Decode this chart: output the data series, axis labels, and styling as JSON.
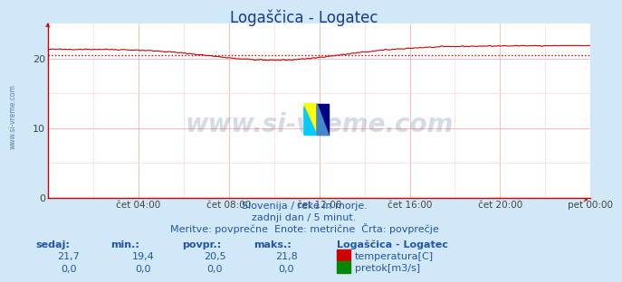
{
  "title": "Logaščica - Logatec",
  "bg_color": "#d0e8f8",
  "plot_bg_color": "#ffffff",
  "grid_color_major": "#ffbbbb",
  "grid_color_minor": "#ffd8d8",
  "xlim": [
    0,
    288
  ],
  "ylim": [
    0,
    25
  ],
  "yticks": [
    0,
    10,
    20
  ],
  "xtick_labels": [
    "čet 04:00",
    "čet 08:00",
    "čet 12:00",
    "čet 16:00",
    "čet 20:00",
    "pet 00:00"
  ],
  "xtick_positions": [
    48,
    96,
    144,
    192,
    240,
    288
  ],
  "temp_color": "#cc0000",
  "flow_color": "#008800",
  "avg_value": 20.5,
  "avg_line_color": "#cc0000",
  "watermark": "www.si-vreme.com",
  "watermark_color": "#1a3a6e",
  "watermark_alpha": 0.18,
  "ylabel_text": "www.si-vreme.com",
  "subtitle_lines": [
    "Slovenija / reke in morje.",
    "zadnji dan / 5 minut.",
    "Meritve: povprečne  Enote: metrične  Črta: povprečje"
  ],
  "table_headers": [
    "sedaj:",
    "min.:",
    "povpr.:",
    "maks.:"
  ],
  "table_row1_vals": [
    "21,7",
    "19,4",
    "20,5",
    "21,8"
  ],
  "table_row2_vals": [
    "0,0",
    "0,0",
    "0,0",
    "0,0"
  ],
  "legend_title": "Logaščica - Logatec",
  "legend_items": [
    "temperatura[C]",
    "pretok[m3/s]"
  ],
  "legend_colors": [
    "#cc0000",
    "#008800"
  ],
  "temp_min": 19.4,
  "temp_max": 21.8,
  "temp_avg": 20.5,
  "temp_current": 21.7,
  "title_color": "#1a3a8a",
  "subtitle_color": "#2255aa",
  "table_color": "#2255aa",
  "border_color": "#cc0000",
  "tick_label_color": "#444444"
}
